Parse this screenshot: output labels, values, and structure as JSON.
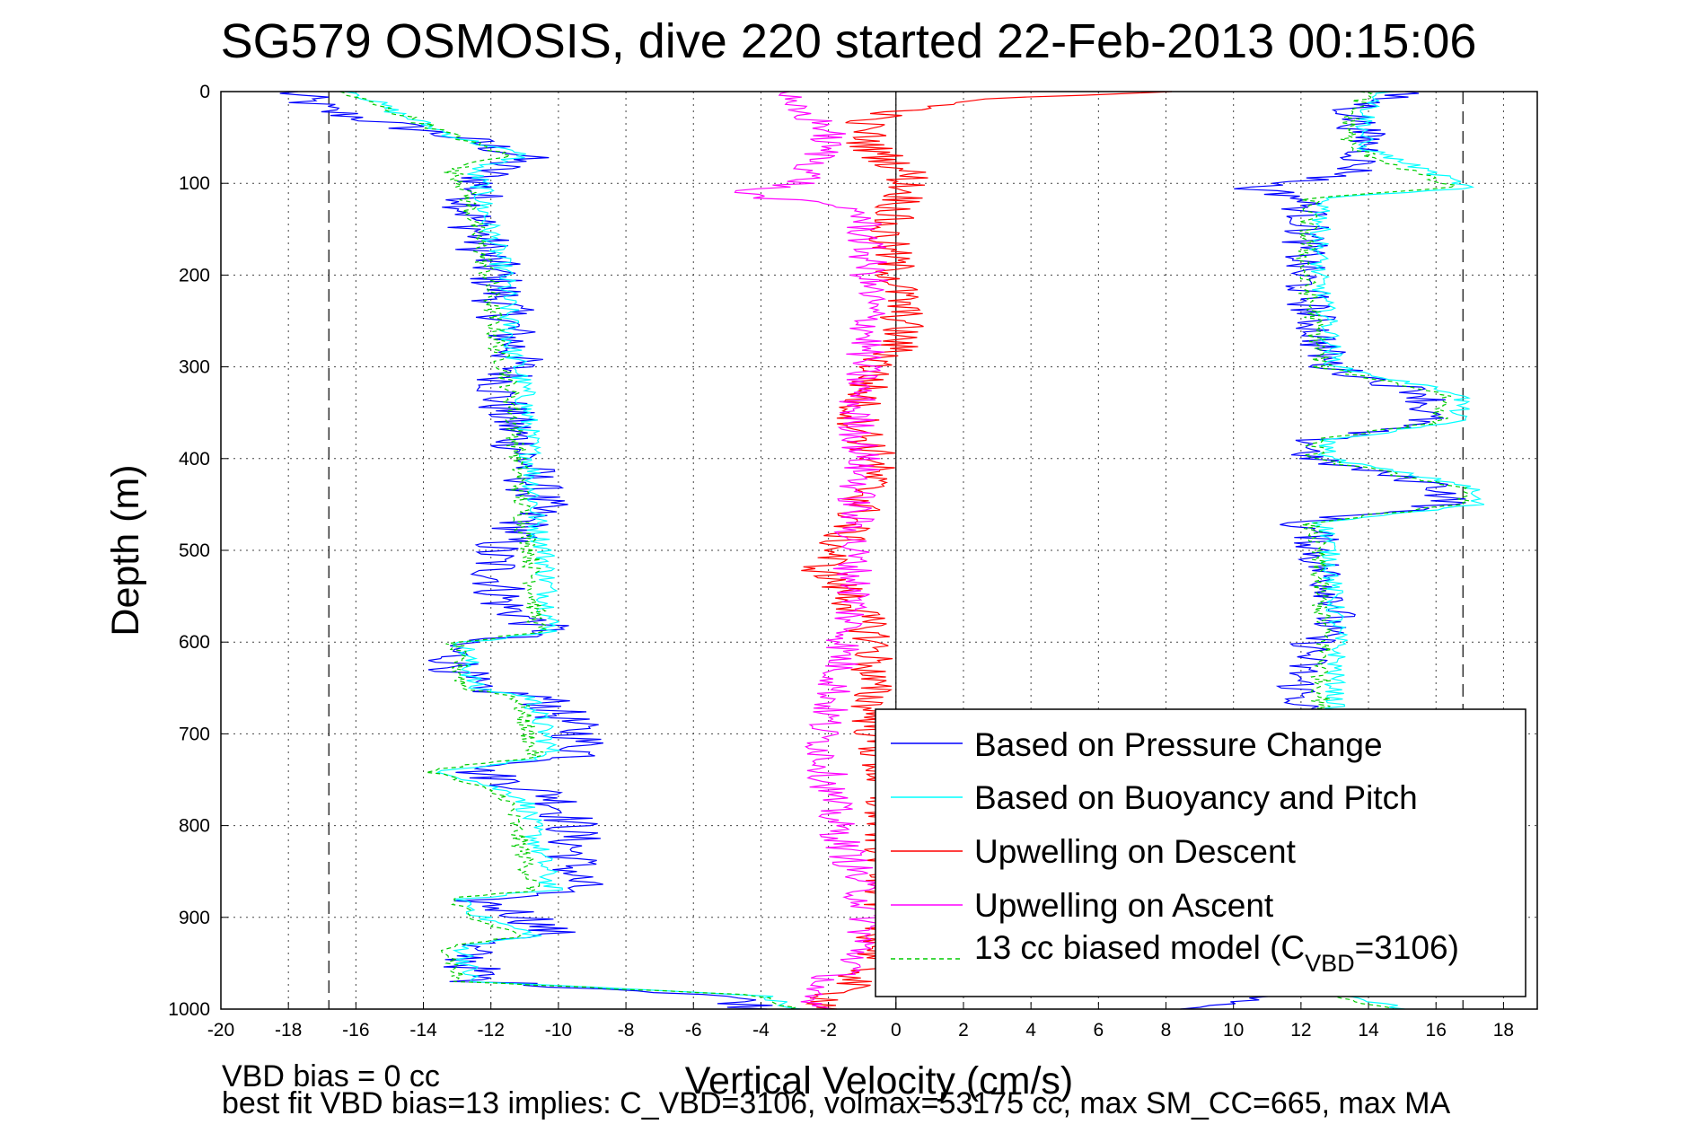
{
  "chart_data": {
    "type": "line",
    "title": "SG579 OSMOSIS, dive 220 started 22-Feb-2013 00:15:06",
    "xlabel": "Vertical Velocity (cm/s)",
    "ylabel": "Depth (m)",
    "xlim": [
      -20,
      19
    ],
    "ylim": [
      0,
      1000
    ],
    "y_reversed": true,
    "grid": true,
    "x_ticks": [
      -20,
      -18,
      -16,
      -14,
      -12,
      -10,
      -8,
      -6,
      -4,
      -2,
      0,
      2,
      4,
      6,
      8,
      10,
      12,
      14,
      16,
      18
    ],
    "y_ticks": [
      0,
      100,
      200,
      300,
      400,
      500,
      600,
      700,
      800,
      900,
      1000
    ],
    "reference_lines": {
      "dashed_x": [
        -16.8,
        16.8
      ],
      "solid_x": [
        0
      ]
    },
    "legend_placement": "lower-right",
    "legend": [
      {
        "label": "Based on Pressure Change",
        "color": "#0000ff",
        "dash": false
      },
      {
        "label": "Based on Buoyancy and Pitch",
        "color": "#00ffff",
        "dash": false
      },
      {
        "label": "Upwelling on Descent",
        "color": "#ff0000",
        "dash": false
      },
      {
        "label": "Upwelling on Ascent",
        "color": "#ff00ff",
        "dash": false
      },
      {
        "label_main": "13 cc biased model (C",
        "label_sub": "VBD",
        "label_tail": "=3106)",
        "color": "#00cc00",
        "dash": true
      }
    ],
    "series": [
      {
        "name": "Based on Pressure Change (descent)",
        "color": "#0000ff",
        "noise": 0.9,
        "depth": [
          0,
          20,
          50,
          70,
          85,
          100,
          130,
          200,
          280,
          300,
          330,
          400,
          450,
          480,
          500,
          560,
          590,
          600,
          650,
          660,
          700,
          725,
          740,
          770,
          800,
          870,
          880,
          900,
          920,
          930,
          970,
          985,
          1000
        ],
        "velocity": [
          -18,
          -17,
          -13,
          -11,
          -12,
          -12.3,
          -12.6,
          -11.9,
          -11.3,
          -11.3,
          -11.8,
          -11.0,
          -10.6,
          -11.2,
          -12.0,
          -11.6,
          -10.2,
          -13.2,
          -12.8,
          -10.5,
          -9.4,
          -9.2,
          -12.5,
          -10.0,
          -9.6,
          -9.5,
          -12.6,
          -10.8,
          -10.2,
          -12.8,
          -12.4,
          -5,
          -4
        ]
      },
      {
        "name": "Based on Buoyancy and Pitch (descent)",
        "color": "#00ffff",
        "noise": 0.35,
        "depth": [
          0,
          20,
          50,
          70,
          85,
          100,
          130,
          200,
          280,
          300,
          330,
          400,
          450,
          480,
          500,
          560,
          590,
          600,
          650,
          660,
          700,
          725,
          740,
          770,
          800,
          870,
          880,
          900,
          920,
          930,
          970,
          985,
          1000
        ],
        "velocity": [
          -16,
          -15,
          -13,
          -11,
          -12.6,
          -12.3,
          -12.2,
          -11.6,
          -11.4,
          -11.2,
          -11.0,
          -10.8,
          -10.7,
          -10.6,
          -10.4,
          -10.3,
          -10.2,
          -12.8,
          -12.5,
          -10.8,
          -10.4,
          -10.2,
          -13.4,
          -11.0,
          -10.8,
          -10.2,
          -12.8,
          -12.3,
          -10.6,
          -12.8,
          -12.6,
          -4,
          -3
        ]
      },
      {
        "name": "13 cc biased model (descent)",
        "color": "#00cc00",
        "dash": true,
        "noise": 0.3,
        "depth": [
          0,
          20,
          50,
          70,
          85,
          100,
          130,
          200,
          280,
          300,
          330,
          400,
          450,
          480,
          500,
          560,
          590,
          600,
          650,
          660,
          700,
          725,
          740,
          770,
          800,
          870,
          880,
          900,
          920,
          930,
          970,
          985,
          1000
        ],
        "velocity": [
          -16.5,
          -15,
          -13,
          -11.5,
          -13.2,
          -12.8,
          -12.6,
          -12.1,
          -11.8,
          -11.6,
          -11.4,
          -11.2,
          -11.1,
          -11.0,
          -10.8,
          -10.7,
          -10.6,
          -13.1,
          -12.8,
          -11.2,
          -10.9,
          -10.7,
          -13.8,
          -11.5,
          -11.3,
          -10.7,
          -13.2,
          -12.7,
          -11.0,
          -13.2,
          -13.0,
          -4,
          -3
        ]
      },
      {
        "name": "Based on Pressure Change (ascent)",
        "color": "#0000ff",
        "noise": 0.7,
        "depth": [
          0,
          20,
          60,
          90,
          105,
          115,
          140,
          200,
          250,
          300,
          330,
          360,
          380,
          400,
          430,
          450,
          470,
          480,
          520,
          560,
          600,
          640,
          700,
          800,
          900,
          980,
          1000
        ],
        "velocity": [
          15,
          13.5,
          14,
          13.5,
          10.5,
          12,
          12.2,
          12.0,
          12.4,
          12.8,
          15.8,
          15.6,
          12.4,
          12.2,
          16.2,
          16.4,
          11.8,
          12.4,
          12.6,
          13.2,
          12.4,
          11.9,
          12.2,
          12.4,
          12.3,
          12.4,
          9
        ]
      },
      {
        "name": "Based on Buoyancy and Pitch (ascent)",
        "color": "#00ffff",
        "noise": 0.3,
        "depth": [
          0,
          20,
          60,
          90,
          105,
          115,
          140,
          200,
          250,
          300,
          330,
          360,
          380,
          400,
          430,
          450,
          470,
          480,
          520,
          560,
          600,
          640,
          700,
          800,
          900,
          980,
          1000
        ],
        "velocity": [
          14.5,
          14,
          13.8,
          16,
          17,
          12.8,
          12.6,
          12.5,
          12.8,
          13.0,
          16.8,
          16.6,
          12.8,
          12.8,
          17.0,
          17.2,
          12.6,
          12.8,
          12.9,
          13.0,
          13.1,
          13.0,
          13.0,
          13.0,
          13.0,
          13.0,
          15
        ]
      },
      {
        "name": "13 cc biased model (ascent)",
        "color": "#00cc00",
        "dash": true,
        "noise": 0.3,
        "depth": [
          0,
          20,
          60,
          90,
          105,
          115,
          140,
          200,
          250,
          300,
          330,
          360,
          380,
          400,
          430,
          450,
          470,
          480,
          520,
          560,
          600,
          640,
          700,
          800,
          900,
          980,
          1000
        ],
        "velocity": [
          14,
          13.5,
          13.4,
          15.5,
          16.5,
          12.3,
          12.2,
          12.1,
          12.4,
          12.6,
          16.3,
          16.1,
          12.4,
          12.4,
          16.6,
          16.8,
          12.2,
          12.4,
          12.5,
          12.6,
          12.7,
          12.6,
          12.6,
          12.6,
          12.6,
          12.6,
          14.5
        ]
      },
      {
        "name": "Upwelling on Descent",
        "color": "#ff0000",
        "noise": 0.7,
        "depth": [
          0,
          10,
          30,
          60,
          90,
          120,
          150,
          200,
          250,
          280,
          300,
          350,
          400,
          450,
          500,
          520,
          550,
          600,
          640,
          700,
          760,
          800,
          860,
          900,
          950,
          990,
          1000
        ],
        "velocity": [
          8,
          2,
          -1,
          -0.8,
          0.4,
          0.2,
          -0.4,
          0.0,
          0.2,
          0.0,
          -0.6,
          -1.2,
          -0.6,
          -1.0,
          -1.8,
          -2.2,
          -1.4,
          -0.6,
          -0.8,
          -0.6,
          -0.4,
          -0.4,
          -0.2,
          -0.4,
          -0.6,
          -2.0,
          -2
        ]
      },
      {
        "name": "Upwelling on Ascent",
        "color": "#ff00ff",
        "noise": 0.6,
        "depth": [
          0,
          10,
          40,
          70,
          100,
          110,
          130,
          200,
          260,
          300,
          350,
          400,
          450,
          500,
          550,
          600,
          650,
          700,
          750,
          800,
          850,
          900,
          950,
          990,
          1000
        ],
        "velocity": [
          -3,
          -3.5,
          -2,
          -2.2,
          -2.8,
          -4.8,
          -1.0,
          -0.8,
          -0.8,
          -1.0,
          -1.2,
          -1.0,
          -1.2,
          -1.3,
          -1.2,
          -1.5,
          -1.8,
          -2.2,
          -2.0,
          -1.8,
          -1.2,
          -0.8,
          -1.2,
          -3.0,
          -2
        ]
      }
    ]
  },
  "footer": {
    "line1": "VBD bias = 0 cc",
    "line2": "best fit VBD bias=13 implies: C_VBD=3106, volmax=53175 cc, max SM_CC=665, max MA"
  }
}
